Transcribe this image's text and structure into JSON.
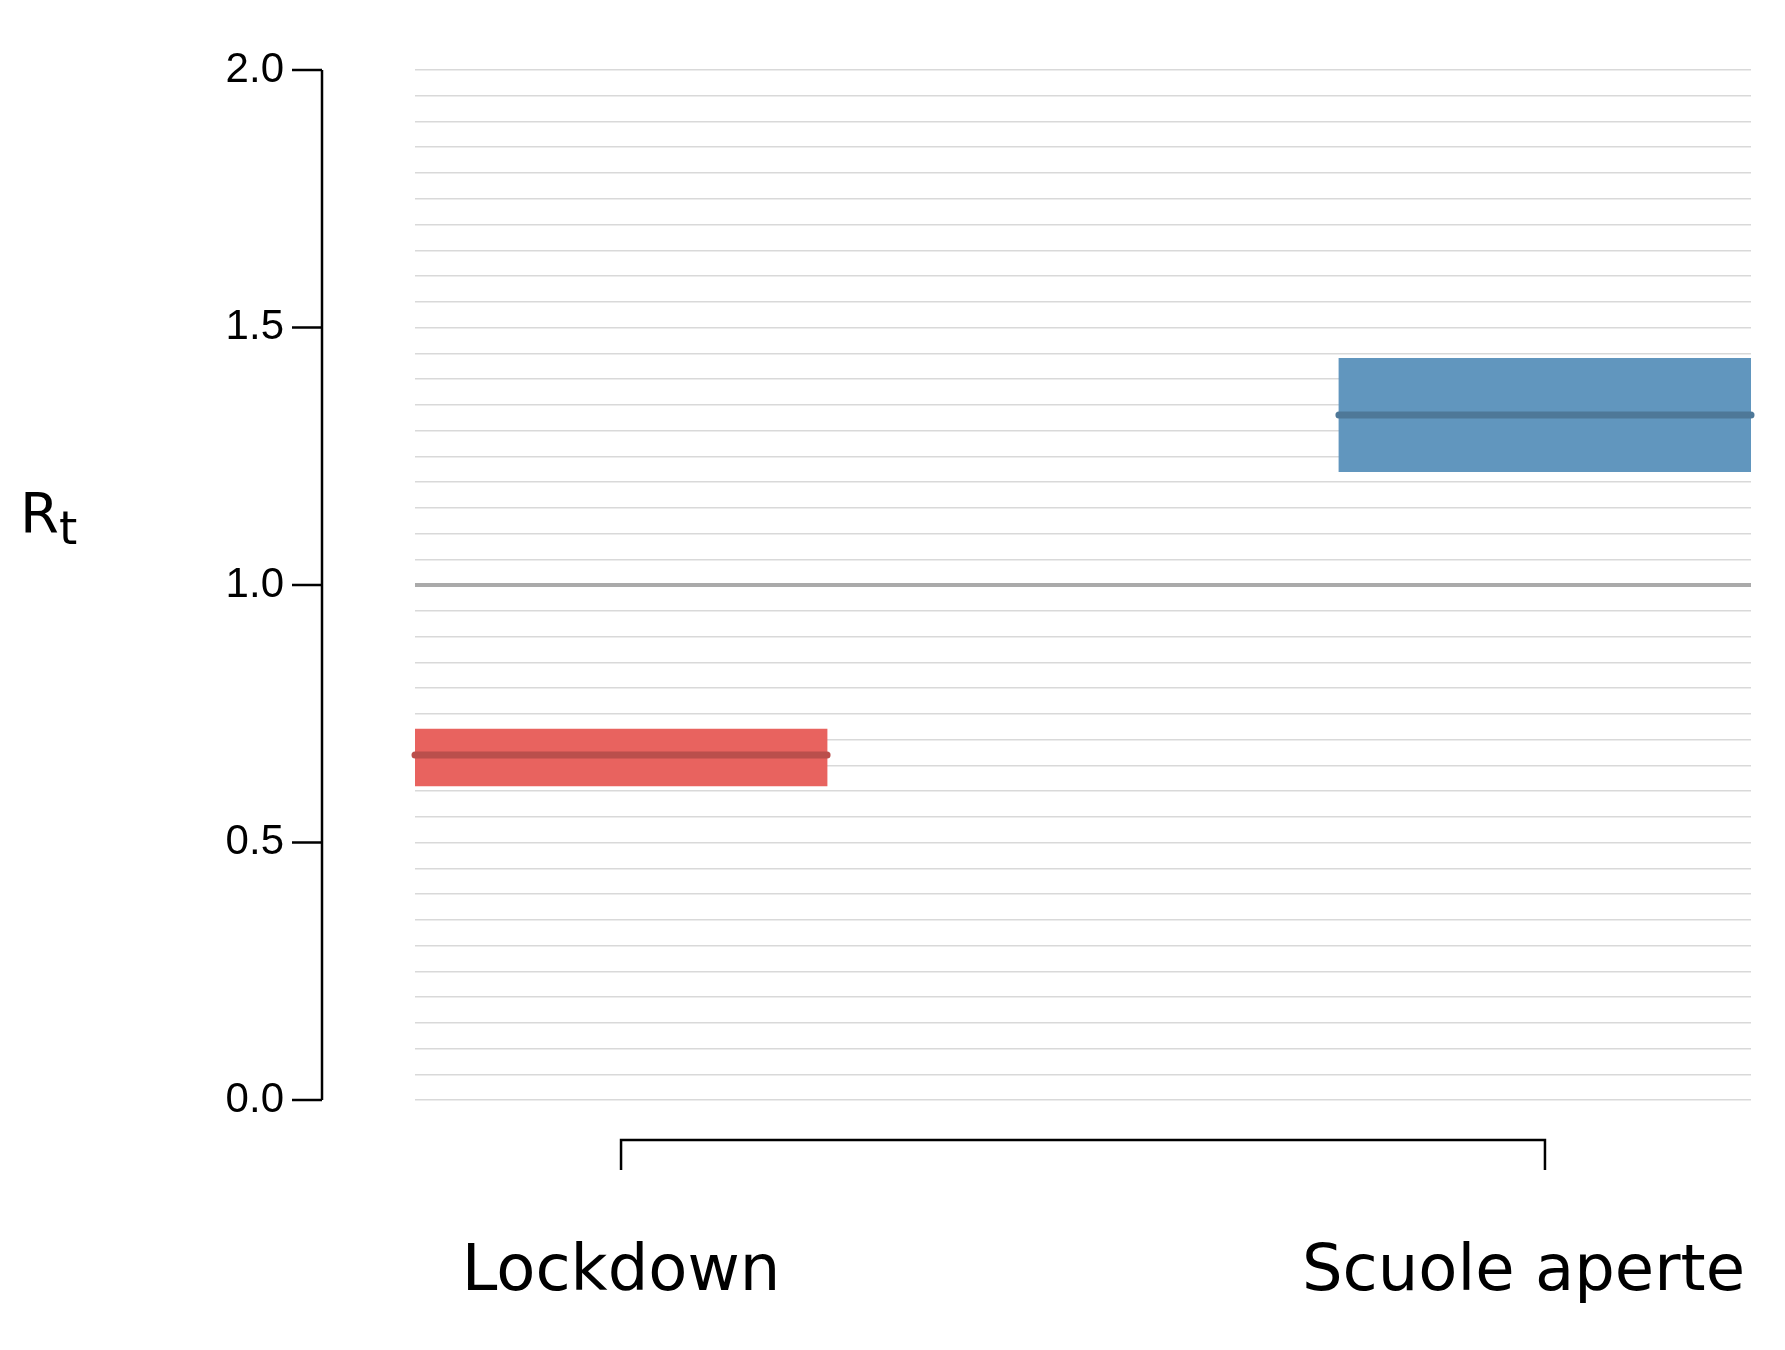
{
  "chart_data": {
    "type": "box",
    "ylabel": "R$_{t}$",
    "categories": [
      "Lockdown",
      "Scuole aperte"
    ],
    "boxes": [
      {
        "low": 0.61,
        "q1": 0.61,
        "median": 0.67,
        "q3": 0.72,
        "high": 0.72
      },
      {
        "low": 1.22,
        "q1": 1.22,
        "median": 1.33,
        "q3": 1.44,
        "high": 1.44
      }
    ],
    "colors": [
      "#e8635f",
      "#6196be"
    ],
    "ylim": [
      0,
      2
    ],
    "yticks": [
      {
        "value": 0,
        "label": "0.0"
      },
      {
        "value": 0.05,
        "label": null
      },
      {
        "value": 0.1,
        "label": null
      },
      {
        "value": 0.15,
        "label": null
      },
      {
        "value": 0.2,
        "label": null
      },
      {
        "value": 0.25,
        "label": null
      },
      {
        "value": 0.3,
        "label": null
      },
      {
        "value": 0.35,
        "label": null
      },
      {
        "value": 0.4,
        "label": null
      },
      {
        "value": 0.45,
        "label": null
      },
      {
        "value": 0.5,
        "label": "0.5"
      },
      {
        "value": 0.55,
        "label": null
      },
      {
        "value": 0.6,
        "label": null
      },
      {
        "value": 0.65,
        "label": null
      },
      {
        "value": 0.7,
        "label": null
      },
      {
        "value": 0.75,
        "label": null
      },
      {
        "value": 0.8,
        "label": null
      },
      {
        "value": 0.85,
        "label": null
      },
      {
        "value": 0.9,
        "label": null
      },
      {
        "value": 0.95,
        "label": null
      },
      {
        "value": 1,
        "label": "1.0"
      },
      {
        "value": 1.05,
        "label": null
      },
      {
        "value": 1.1,
        "label": null
      },
      {
        "value": 1.15,
        "label": null
      },
      {
        "value": 1.2,
        "label": null
      },
      {
        "value": 1.25,
        "label": null
      },
      {
        "value": 1.3,
        "label": null
      },
      {
        "value": 1.35,
        "label": null
      },
      {
        "value": 1.4,
        "label": null
      },
      {
        "value": 1.45,
        "label": null
      },
      {
        "value": 1.5,
        "label": "1.5"
      },
      {
        "value": 1.55,
        "label": null
      },
      {
        "value": 1.6,
        "label": null
      },
      {
        "value": 1.65,
        "label": null
      },
      {
        "value": 1.7,
        "label": null
      },
      {
        "value": 1.75,
        "label": null
      },
      {
        "value": 1.8,
        "label": null
      },
      {
        "value": 1.85,
        "label": null
      },
      {
        "value": 1.9,
        "label": null
      },
      {
        "value": 1.95,
        "label": null
      },
      {
        "value": 2,
        "label": "2.0"
      }
    ],
    "grid": "y",
    "ref_lines": [
      {
        "axis": "y",
        "value": 1,
        "color": "#aaaaaa"
      }
    ]
  }
}
